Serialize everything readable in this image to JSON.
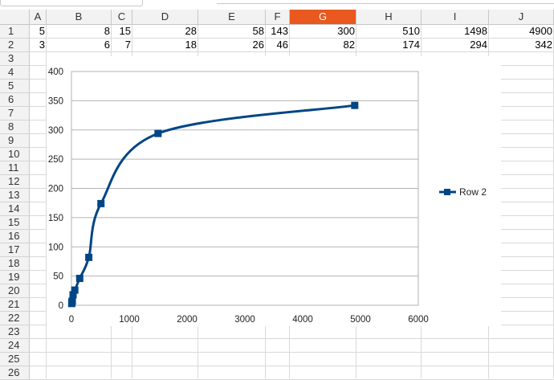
{
  "columns": [
    "A",
    "B",
    "C",
    "D",
    "E",
    "F",
    "G",
    "H",
    "I",
    "J"
  ],
  "selected_column": "G",
  "rows": [
    "1",
    "2",
    "3",
    "4",
    "5",
    "6",
    "7",
    "8",
    "9",
    "10",
    "11",
    "12",
    "13",
    "14",
    "15",
    "16",
    "17",
    "18",
    "19",
    "20",
    "21",
    "22",
    "23",
    "24",
    "25",
    "26"
  ],
  "sheet": {
    "row1": [
      "5",
      "8",
      "15",
      "28",
      "58",
      "143",
      "300",
      "510",
      "1498",
      "4900"
    ],
    "row2": [
      "3",
      "6",
      "7",
      "18",
      "26",
      "46",
      "82",
      "174",
      "294",
      "342"
    ]
  },
  "colors": {
    "series": "#004586",
    "selected_header": "#e8581f",
    "header_bg": "#f2f2f2"
  },
  "chart_data": {
    "type": "scatter",
    "smooth": true,
    "marker": "square",
    "series": [
      {
        "name": "Row 2",
        "x": [
          5,
          8,
          15,
          28,
          58,
          143,
          300,
          510,
          1498,
          4900
        ],
        "y": [
          3,
          6,
          7,
          18,
          26,
          46,
          82,
          174,
          294,
          342
        ]
      }
    ],
    "xlim": [
      0,
      6000
    ],
    "ylim": [
      0,
      400
    ],
    "xticks": [
      "0",
      "1000",
      "2000",
      "3000",
      "4000",
      "5000",
      "6000"
    ],
    "yticks": [
      "0",
      "50",
      "100",
      "150",
      "200",
      "250",
      "300",
      "350",
      "400"
    ],
    "grid": "horizontal",
    "legend": "right"
  }
}
